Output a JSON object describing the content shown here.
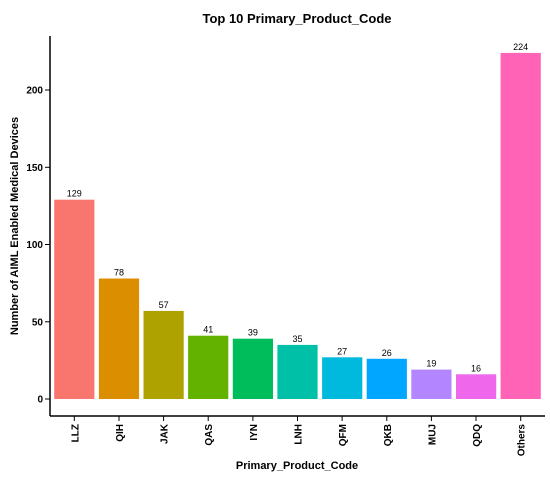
{
  "chart_data": {
    "type": "bar",
    "title": "Top 10 Primary_Product_Code",
    "xlabel": "Primary_Product_Code",
    "ylabel": "Number of AIML Enabled Medical Devices",
    "categories": [
      "LLZ",
      "QIH",
      "JAK",
      "QAS",
      "IYN",
      "LNH",
      "QFM",
      "QKB",
      "MUJ",
      "QDQ",
      "Others"
    ],
    "values": [
      129,
      78,
      57,
      41,
      39,
      35,
      27,
      26,
      19,
      16,
      224
    ],
    "colors": [
      "#F8766D",
      "#DB8E00",
      "#AEA200",
      "#64B200",
      "#00BD5C",
      "#00C1A7",
      "#00BADE",
      "#00A6FF",
      "#B385FF",
      "#EF67EB",
      "#FF63B6"
    ],
    "yticks": [
      0,
      50,
      100,
      150,
      200
    ],
    "ylim": [
      0,
      235
    ],
    "grid": false,
    "legend": "none"
  }
}
